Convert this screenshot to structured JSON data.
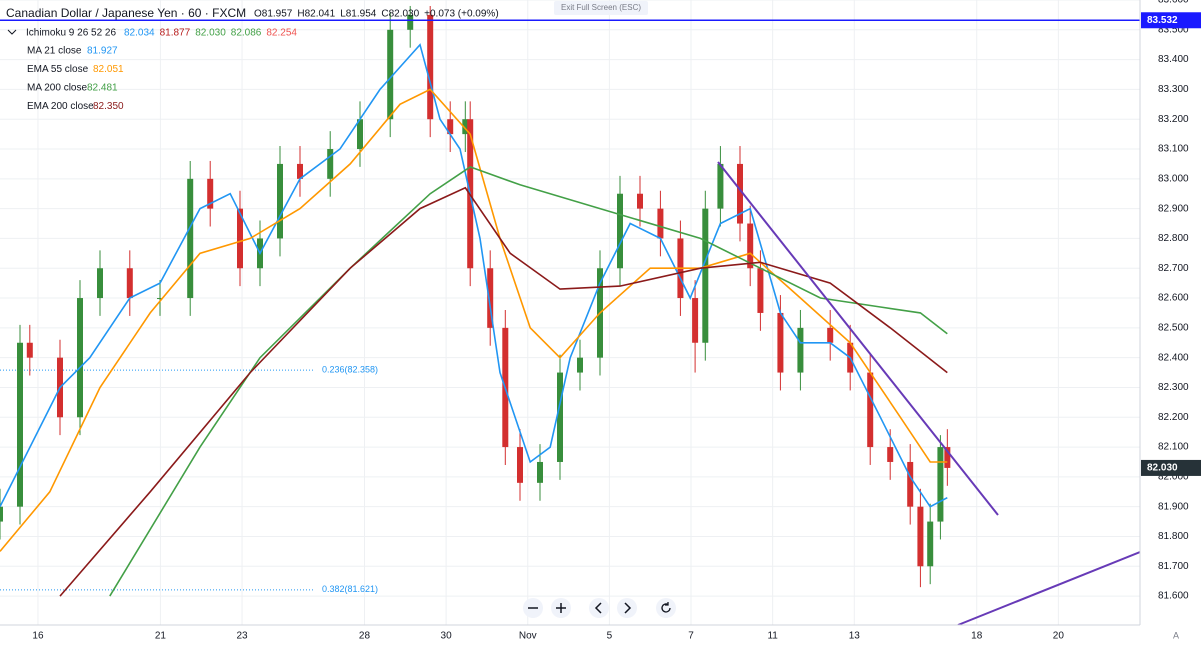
{
  "chart_data": {
    "type": "candlestick",
    "title": "Canadian Dollar / Japanese Yen · 60 · FXCM",
    "ohlc_text": [
      "O81.957",
      "H82.041",
      "L81.954",
      "C82.030",
      "+0.073 (+0.09%)"
    ],
    "ichimoku": {
      "name": "Ichimoku 9 26 52 26",
      "values": [
        {
          "label": "82.034",
          "color": "#2196f3"
        },
        {
          "label": "81.877",
          "color": "#b71c1c"
        },
        {
          "label": "82.030",
          "color": "#43a047"
        },
        {
          "label": "82.086",
          "color": "#43a047"
        },
        {
          "label": "82.254",
          "color": "#ef5350"
        }
      ]
    },
    "exit_text": "Exit Full Screen (ESC)",
    "corner_text": "A",
    "xlim": [
      -0.93,
      27.0
    ],
    "ylim": [
      81.503,
      83.6
    ],
    "xticks": [
      {
        "value": 0,
        "label": "16"
      },
      {
        "value": 3,
        "label": "21"
      },
      {
        "value": 5,
        "label": "23"
      },
      {
        "value": 8,
        "label": "28"
      },
      {
        "value": 10,
        "label": "30"
      },
      {
        "value": 12,
        "label": "Nov"
      },
      {
        "value": 14,
        "label": "5"
      },
      {
        "value": 16,
        "label": "7"
      },
      {
        "value": 18,
        "label": "11"
      },
      {
        "value": 20,
        "label": "13"
      },
      {
        "value": 23,
        "label": "18"
      },
      {
        "value": 25,
        "label": "20"
      }
    ],
    "yticks": [
      {
        "value": 83.6,
        "label": "83.600"
      },
      {
        "value": 83.5,
        "label": "83.500"
      },
      {
        "value": 83.4,
        "label": "83.400"
      },
      {
        "value": 83.3,
        "label": "83.300"
      },
      {
        "value": 83.2,
        "label": "83.200"
      },
      {
        "value": 83.1,
        "label": "83.100"
      },
      {
        "value": 83.0,
        "label": "83.000"
      },
      {
        "value": 82.9,
        "label": "82.900"
      },
      {
        "value": 82.8,
        "label": "82.800"
      },
      {
        "value": 82.7,
        "label": "82.700"
      },
      {
        "value": 82.6,
        "label": "82.600"
      },
      {
        "value": 82.5,
        "label": "82.500"
      },
      {
        "value": 82.4,
        "label": "82.400"
      },
      {
        "value": 82.3,
        "label": "82.300"
      },
      {
        "value": 82.2,
        "label": "82.200"
      },
      {
        "value": 82.1,
        "label": "82.100"
      },
      {
        "value": 82.0,
        "label": "82.000"
      },
      {
        "value": 81.9,
        "label": "81.900"
      },
      {
        "value": 81.8,
        "label": "81.800"
      },
      {
        "value": 81.7,
        "label": "81.700"
      },
      {
        "value": 81.6,
        "label": "81.600"
      }
    ],
    "grid": true,
    "up_color": "#388e3c",
    "down_color": "#d32f2f",
    "candles": {
      "x": [
        -0.93,
        -0.44,
        -0.2,
        0.54,
        1.03,
        1.52,
        2.25,
        2.99,
        3.73,
        4.22,
        4.95,
        5.44,
        5.93,
        6.42,
        7.16,
        7.89,
        8.63,
        9.12,
        9.61,
        10.1,
        10.47,
        10.59,
        11.08,
        11.45,
        11.81,
        12.3,
        12.79,
        13.28,
        13.77,
        14.26,
        14.75,
        15.25,
        15.74,
        16.1,
        16.35,
        16.72,
        17.2,
        17.45,
        17.7,
        18.19,
        18.68,
        19.41,
        19.9,
        20.39,
        20.88,
        21.37,
        21.62,
        21.86,
        22.11,
        22.28
      ],
      "open": [
        81.85,
        81.9,
        82.45,
        82.4,
        82.2,
        82.6,
        82.7,
        82.6,
        82.6,
        83.0,
        82.9,
        82.7,
        82.8,
        83.05,
        83.0,
        83.1,
        83.2,
        83.5,
        83.55,
        83.2,
        83.15,
        83.2,
        82.7,
        82.5,
        82.1,
        81.98,
        82.05,
        82.35,
        82.4,
        82.7,
        82.95,
        82.9,
        82.8,
        82.6,
        82.45,
        82.9,
        83.05,
        82.85,
        82.7,
        82.55,
        82.35,
        82.5,
        82.45,
        82.35,
        82.1,
        82.05,
        81.9,
        81.7,
        81.85,
        82.1
      ],
      "high": [
        81.96,
        82.51,
        82.51,
        82.46,
        82.66,
        82.76,
        82.76,
        82.66,
        83.06,
        83.06,
        82.96,
        82.86,
        83.11,
        83.11,
        83.16,
        83.26,
        83.56,
        83.58,
        83.58,
        83.26,
        83.26,
        83.26,
        82.76,
        82.56,
        82.16,
        82.11,
        82.41,
        82.46,
        82.76,
        83.01,
        83.01,
        82.96,
        82.86,
        82.66,
        82.96,
        83.11,
        83.11,
        82.91,
        82.76,
        82.61,
        82.56,
        82.56,
        82.51,
        82.41,
        82.16,
        82.11,
        81.96,
        81.91,
        82.14,
        82.16
      ],
      "low": [
        81.79,
        81.84,
        82.34,
        82.14,
        82.14,
        82.54,
        82.54,
        82.54,
        82.54,
        82.84,
        82.64,
        82.64,
        82.74,
        82.94,
        82.94,
        83.04,
        83.14,
        83.44,
        83.14,
        83.09,
        83.09,
        82.64,
        82.44,
        82.04,
        81.92,
        81.92,
        81.99,
        82.29,
        82.34,
        82.64,
        82.84,
        82.74,
        82.54,
        82.35,
        82.39,
        82.84,
        82.79,
        82.64,
        82.49,
        82.29,
        82.29,
        82.39,
        82.29,
        82.04,
        81.99,
        81.84,
        81.63,
        81.64,
        81.79,
        81.97
      ],
      "close": [
        81.9,
        82.45,
        82.4,
        82.2,
        82.6,
        82.7,
        82.6,
        82.6,
        83.0,
        82.9,
        82.7,
        82.8,
        83.05,
        83.0,
        83.1,
        83.2,
        83.5,
        83.55,
        83.2,
        83.15,
        83.2,
        82.7,
        82.5,
        82.1,
        81.98,
        82.05,
        82.35,
        82.4,
        82.7,
        82.95,
        82.9,
        82.8,
        82.6,
        82.45,
        82.9,
        83.05,
        82.85,
        82.7,
        82.55,
        82.35,
        82.5,
        82.45,
        82.35,
        82.1,
        82.05,
        81.9,
        81.7,
        81.85,
        82.1,
        82.03
      ]
    },
    "series": [
      {
        "name": "MA 21 close",
        "legend_value": "81.927",
        "color": "#2196f3",
        "x": [
          -0.93,
          0.54,
          1.27,
          2.25,
          2.99,
          3.97,
          4.71,
          5.44,
          6.42,
          7.4,
          8.38,
          9.36,
          9.85,
          10.34,
          10.83,
          11.32,
          12.06,
          12.55,
          13.04,
          13.77,
          14.51,
          15.25,
          15.98,
          16.72,
          17.45,
          18.19,
          18.68,
          19.41,
          19.9,
          20.64,
          21.37,
          21.86,
          22.28
        ],
        "values": [
          81.9,
          82.3,
          82.4,
          82.6,
          82.65,
          82.9,
          82.95,
          82.75,
          83.0,
          83.1,
          83.3,
          83.45,
          83.2,
          83.1,
          82.8,
          82.35,
          82.05,
          82.1,
          82.4,
          82.65,
          82.85,
          82.8,
          82.6,
          82.85,
          82.9,
          82.55,
          82.45,
          82.45,
          82.4,
          82.2,
          82.0,
          81.9,
          81.93
        ]
      },
      {
        "name": "EMA 55 close",
        "legend_value": "82.051",
        "color": "#ff9800",
        "x": [
          -0.93,
          0.29,
          1.52,
          2.75,
          3.97,
          5.2,
          6.42,
          7.65,
          8.87,
          9.61,
          10.59,
          11.32,
          12.06,
          12.79,
          13.77,
          15.0,
          16.23,
          17.45,
          18.68,
          19.9,
          21.13,
          21.86,
          22.28
        ],
        "values": [
          81.75,
          81.95,
          82.3,
          82.55,
          82.75,
          82.8,
          82.9,
          83.05,
          83.25,
          83.3,
          83.15,
          82.8,
          82.5,
          82.4,
          82.55,
          82.7,
          82.7,
          82.75,
          82.6,
          82.45,
          82.2,
          82.05,
          82.05
        ]
      },
      {
        "name": "MA 200 close",
        "legend_value": "82.481",
        "color": "#43a047",
        "x": [
          1.76,
          3.97,
          5.44,
          7.65,
          9.61,
          10.59,
          11.81,
          13.77,
          16.23,
          17.7,
          19.17,
          20.64,
          21.62,
          22.28
        ],
        "values": [
          81.6,
          82.1,
          82.4,
          82.7,
          82.95,
          83.04,
          82.98,
          82.9,
          82.8,
          82.7,
          82.6,
          82.57,
          82.55,
          82.48
        ]
      },
      {
        "name": "EMA 200 close",
        "legend_value": "82.350",
        "color": "#8b1a1a",
        "x": [
          0.54,
          2.75,
          5.2,
          7.65,
          9.36,
          10.47,
          11.57,
          12.79,
          14.26,
          16.23,
          17.7,
          19.41,
          20.88,
          22.28
        ],
        "values": [
          81.6,
          81.95,
          82.35,
          82.7,
          82.9,
          82.97,
          82.75,
          82.63,
          82.64,
          82.7,
          82.72,
          82.65,
          82.5,
          82.35
        ]
      }
    ],
    "hline": {
      "value": 83.532,
      "label": "83.532",
      "color": "#1a1aff"
    },
    "last_price": {
      "value": 82.03,
      "label": "82.030"
    },
    "fib_levels": [
      {
        "value": 82.358,
        "label": "0.236(82.358)"
      },
      {
        "value": 81.621,
        "label": "0.382(81.621)"
      }
    ]
  }
}
